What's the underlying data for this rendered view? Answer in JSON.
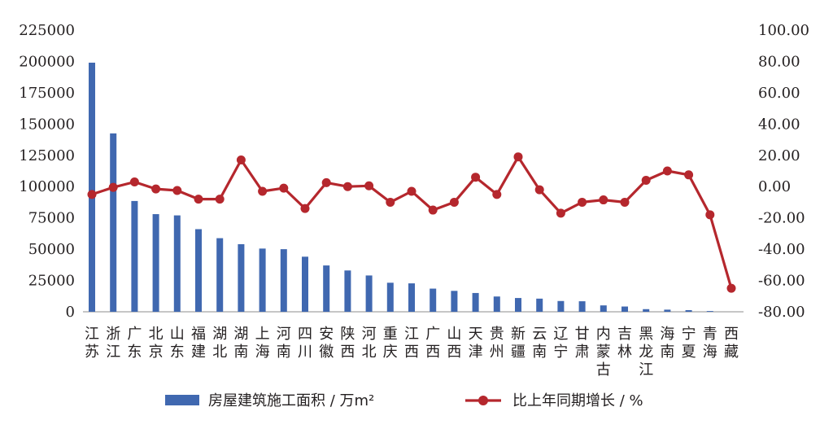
{
  "chart_data": {
    "type": "bar+line",
    "categories": [
      [
        "江",
        "苏"
      ],
      [
        "浙",
        "江"
      ],
      [
        "广",
        "东"
      ],
      [
        "北",
        "京"
      ],
      [
        "山",
        "东"
      ],
      [
        "福",
        "建"
      ],
      [
        "湖",
        "北"
      ],
      [
        "湖",
        "南"
      ],
      [
        "上",
        "海"
      ],
      [
        "河",
        "南"
      ],
      [
        "四",
        "川"
      ],
      [
        "安",
        "徽"
      ],
      [
        "陕",
        "西"
      ],
      [
        "河",
        "北"
      ],
      [
        "重",
        "庆"
      ],
      [
        "江",
        "西"
      ],
      [
        "广",
        "西"
      ],
      [
        "山",
        "西"
      ],
      [
        "天",
        "津"
      ],
      [
        "贵",
        "州"
      ],
      [
        "新",
        "疆"
      ],
      [
        "云",
        "南"
      ],
      [
        "辽",
        "宁"
      ],
      [
        "甘",
        "肃"
      ],
      [
        "内",
        "蒙",
        "古"
      ],
      [
        "吉",
        "林"
      ],
      [
        "黑",
        "龙",
        "江"
      ],
      [
        "海",
        "南"
      ],
      [
        "宁",
        "夏"
      ],
      [
        "青",
        "海"
      ],
      [
        "西",
        "藏"
      ]
    ],
    "series": [
      {
        "name": "房屋建筑施工面积 / 万m²",
        "axis": "left",
        "kind": "bar",
        "color": "#4068b0",
        "values": [
          199000,
          142500,
          88500,
          78000,
          77000,
          66000,
          58800,
          54000,
          50500,
          50000,
          44000,
          37000,
          33000,
          29000,
          23200,
          22700,
          18500,
          16700,
          15000,
          12200,
          11000,
          10500,
          8600,
          8400,
          5100,
          4200,
          2100,
          1700,
          1300,
          600,
          0
        ]
      },
      {
        "name": "比上年同期增长 / %",
        "axis": "right",
        "kind": "line",
        "color": "#b5272d",
        "values": [
          -5,
          -0.5,
          3,
          -1.5,
          -2.5,
          -8,
          -8,
          17,
          -3,
          -1,
          -14,
          2.5,
          0,
          0.5,
          -10,
          -3,
          -15,
          -10,
          6,
          -5,
          19,
          -2,
          -17,
          -10,
          -8.5,
          -10,
          4,
          10,
          7.5,
          -18,
          -65
        ]
      }
    ],
    "left_axis": {
      "min": 0,
      "max": 225000,
      "ticks": [
        "0",
        "25000",
        "50000",
        "75000",
        "100000",
        "125000",
        "150000",
        "175000",
        "200000",
        "225000"
      ]
    },
    "right_axis": {
      "min": -80,
      "max": 100,
      "ticks": [
        "-80.00",
        "-60.00",
        "-40.00",
        "-20.00",
        "0.00",
        "20.00",
        "40.00",
        "60.00",
        "80.00",
        "100.00"
      ]
    },
    "legend": {
      "bar_label": "房屋建筑施工面积 / 万m²",
      "line_label": "比上年同期增长 / %",
      "position": "bottom"
    }
  }
}
